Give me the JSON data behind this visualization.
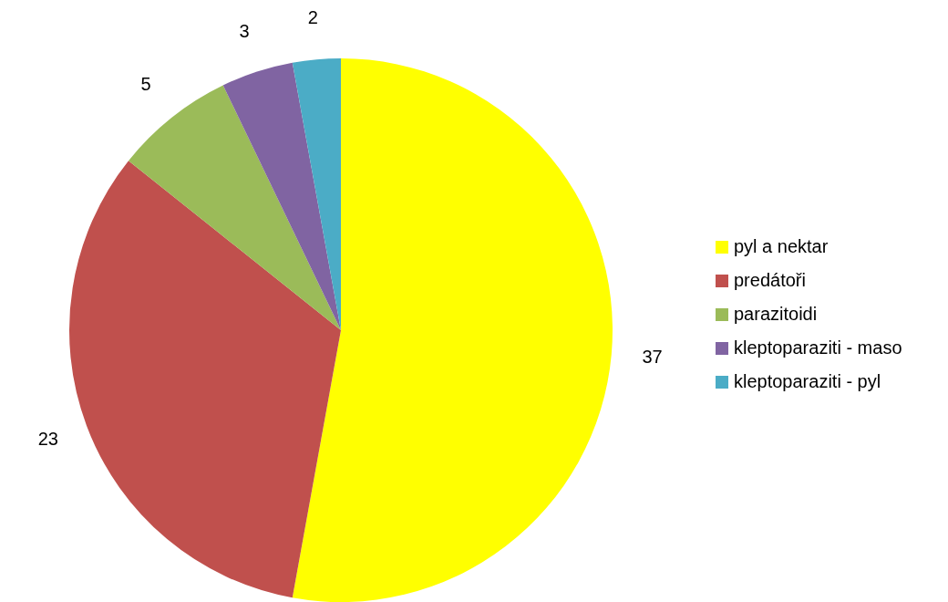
{
  "chart_data": {
    "type": "pie",
    "categories": [
      "pyl a nektar",
      "predátoři",
      "parazitoidi",
      "kleptoparaziti - maso",
      "kleptoparaziti - pyl"
    ],
    "values": [
      37,
      23,
      5,
      3,
      2
    ],
    "colors": [
      "#ffff00",
      "#c0504d",
      "#9bbb59",
      "#8064a2",
      "#4bacc6"
    ],
    "data_labels": true,
    "legend": "right"
  }
}
